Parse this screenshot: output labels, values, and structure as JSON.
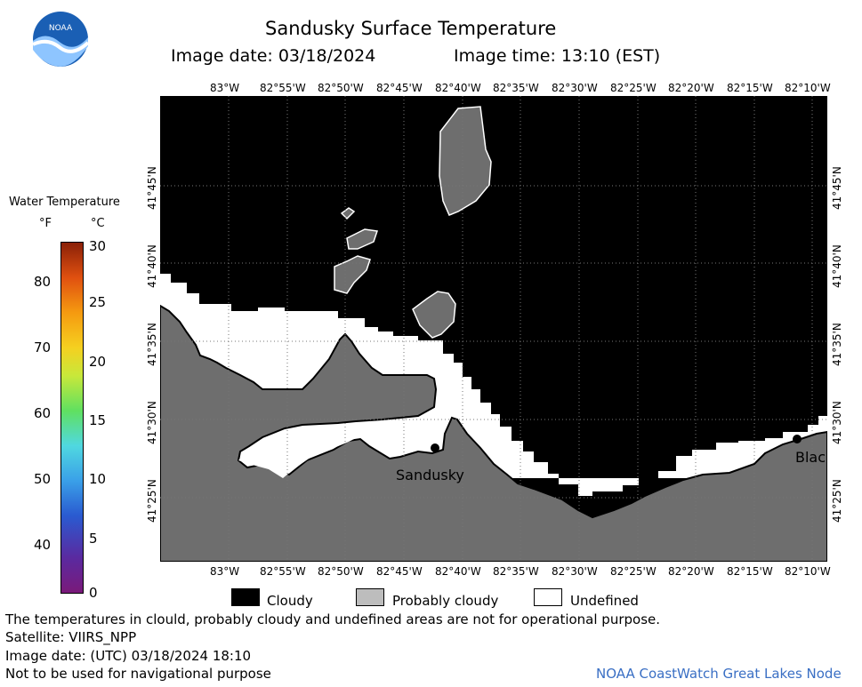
{
  "header": {
    "title": "Sandusky Surface Temperature",
    "image_date": "Image date: 03/18/2024",
    "image_time": "Image time: 13:10 (EST)"
  },
  "logo": {
    "text": "NOAA"
  },
  "map": {
    "top_lon_labels": [
      "83°W",
      "82°55'W",
      "82°50'W",
      "82°45'W",
      "82°40'W",
      "82°35'W",
      "82°30'W",
      "82°25'W",
      "82°20'W",
      "82°15'W",
      "82°10'W"
    ],
    "bottom_lon_labels": [
      "83°W",
      "82°55'W",
      "82°50'W",
      "82°45'W",
      "82°40'W",
      "82°35'W",
      "82°30'W",
      "82°25'W",
      "82°20'W",
      "82°15'W",
      "82°10'W"
    ],
    "lat_labels": [
      "41°45'N",
      "41°40'N",
      "41°35'N",
      "41°30'N",
      "41°25'N"
    ],
    "places": [
      {
        "name": "Sandusky"
      },
      {
        "name": "Blac"
      }
    ],
    "colors": {
      "cloudy": "#000000",
      "probably_cloudy": "#6e6e6e",
      "undefined": "#ffffff"
    }
  },
  "colorbar": {
    "title": "Water Temperature",
    "unit_f": "°F",
    "unit_c": "°C",
    "f_ticks": [
      "80",
      "70",
      "60",
      "50",
      "40"
    ],
    "c_ticks": [
      "30",
      "25",
      "20",
      "15",
      "10",
      "5",
      "0"
    ]
  },
  "legend": {
    "cloudy": "Cloudy",
    "probably_cloudy": "Probably cloudy",
    "undefined": "Undefined"
  },
  "footer": {
    "note": "The temperatures in clould, probably cloudy and undefined areas are not for operational purpose.",
    "satellite": "Satellite: VIIRS_NPP",
    "utc_date": "Image date: (UTC) 03/18/2024  18:10",
    "nav_warning": "Not to be used for navigational purpose",
    "credit": "NOAA CoastWatch Great Lakes Node"
  }
}
